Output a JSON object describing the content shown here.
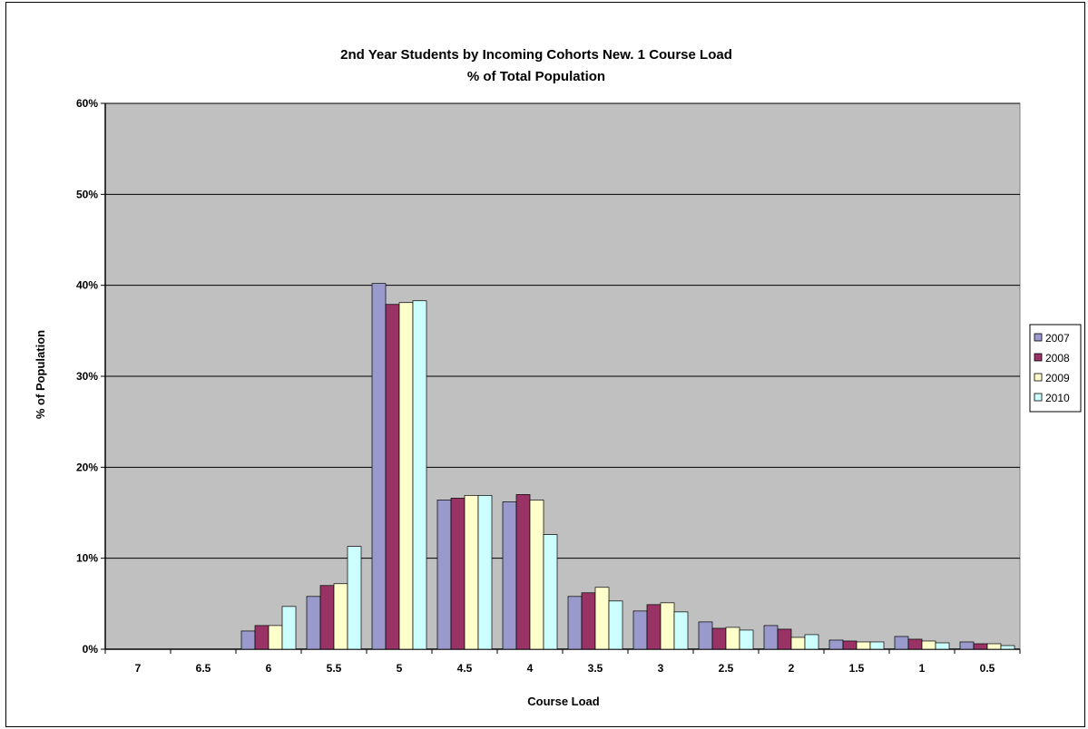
{
  "chart_data": {
    "type": "bar",
    "title": "2nd Year Students by Incoming Cohorts New. 1 Course Load",
    "subtitle": "% of Total Population",
    "xlabel": "Course Load",
    "ylabel": "% of Population",
    "ylim": [
      0,
      60
    ],
    "yticks": [
      0,
      10,
      20,
      30,
      40,
      50,
      60
    ],
    "ytick_labels": [
      "0%",
      "10%",
      "20%",
      "30%",
      "40%",
      "50%",
      "60%"
    ],
    "grid": true,
    "legend_position": "right",
    "categories": [
      "7",
      "6.5",
      "6",
      "5.5",
      "5",
      "4.5",
      "4",
      "3.5",
      "3",
      "2.5",
      "2",
      "1.5",
      "1",
      "0.5"
    ],
    "series": [
      {
        "name": "2007",
        "color": "#9999cc",
        "values": [
          0,
          0,
          2.0,
          5.8,
          40.2,
          16.4,
          16.2,
          5.8,
          4.2,
          3.0,
          2.6,
          1.0,
          1.4,
          0.8
        ]
      },
      {
        "name": "2008",
        "color": "#993366",
        "values": [
          0,
          0,
          2.6,
          7.0,
          37.9,
          16.6,
          17.0,
          6.2,
          4.9,
          2.3,
          2.2,
          0.9,
          1.1,
          0.6
        ]
      },
      {
        "name": "2009",
        "color": "#ffffcc",
        "values": [
          0,
          0,
          2.6,
          7.2,
          38.1,
          16.9,
          16.4,
          6.8,
          5.1,
          2.4,
          1.3,
          0.8,
          0.9,
          0.6
        ]
      },
      {
        "name": "2010",
        "color": "#ccffff",
        "values": [
          0,
          0,
          4.7,
          11.3,
          38.3,
          16.9,
          12.6,
          5.3,
          4.1,
          2.1,
          1.6,
          0.8,
          0.7,
          0.4
        ]
      }
    ],
    "plot_background": "#c0c0c0"
  }
}
